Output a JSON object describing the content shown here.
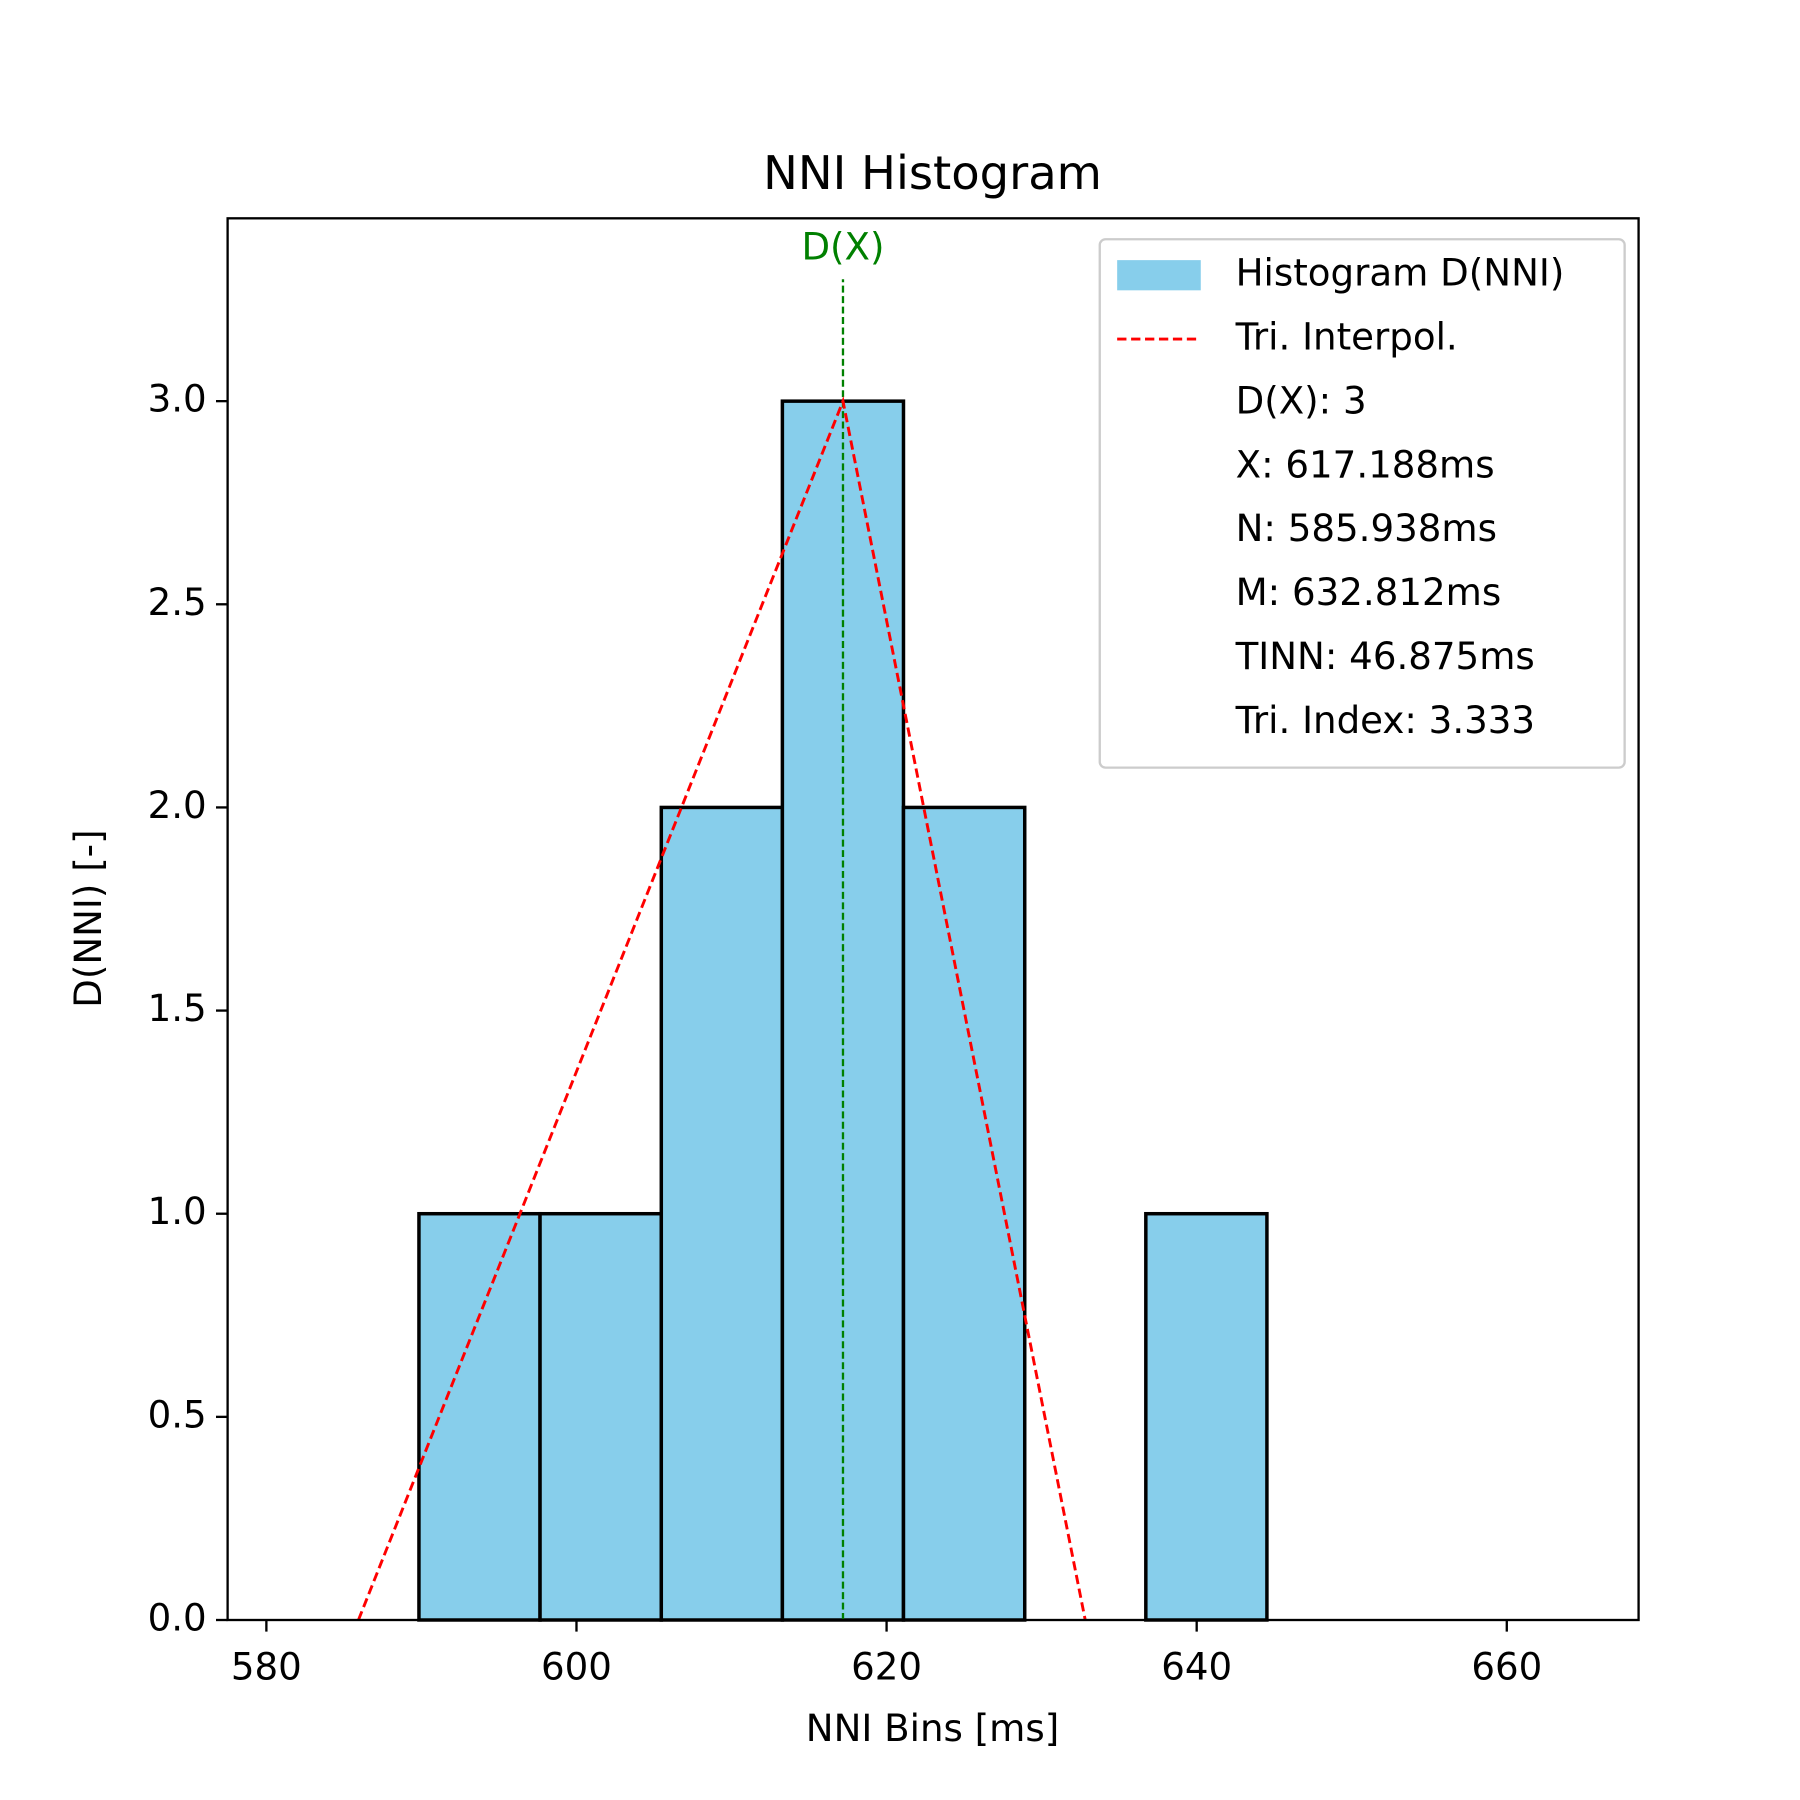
{
  "chart_data": {
    "type": "histogram",
    "title": "NNI Histogram",
    "x_label": "NNI Bins [ms]",
    "y_label": "D(NNI) [-]",
    "bins": [
      589.84,
      597.65,
      605.47,
      613.28,
      621.09,
      628.91,
      636.72,
      644.53
    ],
    "values": [
      1,
      1,
      2,
      3,
      2,
      0,
      1
    ],
    "color": "#87ceeb",
    "edge_color": "#000000",
    "series_name": "Histogram D(NNI)",
    "tri_line": {
      "name": "Tri. Interpol.",
      "color": "#ff0000",
      "x": [
        585.938,
        617.188,
        632.812
      ],
      "y": [
        0,
        3,
        0
      ]
    },
    "peak_line": {
      "x": 617.188,
      "ylim": [
        0,
        3.3
      ],
      "label": "D(X)",
      "color": "#008000"
    },
    "legend_text": [
      "D(X): 3",
      "X: 617.188ms",
      "N: 585.938ms",
      "M: 632.812ms",
      "TINN: 46.875ms",
      "Tri. Index: 3.333"
    ],
    "legend_position": "upper right",
    "xlim": [
      577.5,
      668.5
    ],
    "ylim": [
      0,
      3.45
    ],
    "xticks": [
      580,
      600,
      620,
      640,
      660
    ],
    "yticks": [
      {
        "value": 0,
        "label": "0.0"
      },
      {
        "value": 0.5,
        "label": "0.5"
      },
      {
        "value": 1,
        "label": "1.0"
      },
      {
        "value": 1.5,
        "label": "1.5"
      },
      {
        "value": 2,
        "label": "2.0"
      },
      {
        "value": 2.5,
        "label": "2.5"
      },
      {
        "value": 3,
        "label": "3.0"
      }
    ]
  }
}
